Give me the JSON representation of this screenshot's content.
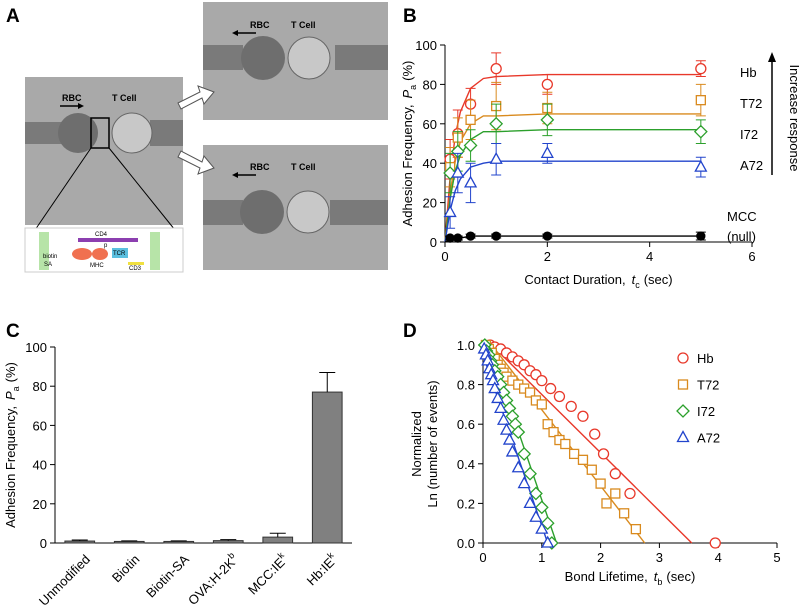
{
  "image_panel": {
    "panel": "A",
    "frames": [
      {
        "cell_labels": [
          "RBC",
          "T Cell"
        ]
      },
      {
        "cell_labels": [
          "RBC",
          "T Cell"
        ]
      },
      {
        "cell_labels": [
          "RBC",
          "T Cell"
        ]
      }
    ],
    "inset_labels": [
      "CD4",
      "biotin",
      "SA",
      "MHC",
      "p",
      "TCR",
      "CD3"
    ]
  },
  "chart_data": [
    {
      "type": "scatter",
      "panel": "B",
      "xlabel": {
        "text": "Contact Duration,",
        "var": "t",
        "sub": "c",
        "unit": "(sec)"
      },
      "ylabel": {
        "text": "Adhesion Frequency,",
        "var": "P",
        "sub": "a",
        "unit": "(%)"
      },
      "xlim": [
        0,
        6
      ],
      "xticks": [
        0,
        2,
        4,
        6
      ],
      "ylim": [
        0,
        100
      ],
      "yticks": [
        0,
        20,
        40,
        60,
        80,
        100
      ],
      "annotations": [
        "Increase response",
        "(null)"
      ],
      "series": [
        {
          "name": "Hb",
          "color": "#e8382a",
          "marker": "circle",
          "x": [
            0.1,
            0.25,
            0.5,
            1,
            2,
            5
          ],
          "values": [
            42,
            55,
            70,
            88,
            80,
            88
          ],
          "errors": [
            10,
            12,
            8,
            8,
            5,
            4
          ],
          "fit": {
            "x": [
              0,
              0.1,
              0.2,
              0.3,
              0.5,
              0.75,
              1,
              2,
              5
            ],
            "values": [
              0,
              33,
              54,
              66,
              78,
              83,
              84,
              85,
              85
            ]
          }
        },
        {
          "name": "T72",
          "color": "#d98a1e",
          "marker": "square",
          "x": [
            0.1,
            0.25,
            0.5,
            1,
            2,
            5
          ],
          "values": [
            38,
            53,
            62,
            69,
            68,
            72
          ],
          "errors": [
            10,
            10,
            10,
            12,
            8,
            8
          ],
          "fit": {
            "x": [
              0,
              0.1,
              0.2,
              0.3,
              0.5,
              0.75,
              1,
              2,
              5
            ],
            "values": [
              0,
              25,
              41,
              51,
              60,
              64,
              64,
              65,
              65
            ]
          }
        },
        {
          "name": "I72",
          "color": "#2ca02c",
          "marker": "diamond",
          "x": [
            0.1,
            0.25,
            0.5,
            1,
            2,
            5
          ],
          "values": [
            35,
            46,
            49,
            60,
            62,
            56
          ],
          "errors": [
            10,
            10,
            8,
            10,
            8,
            6
          ],
          "fit": {
            "x": [
              0,
              0.1,
              0.2,
              0.3,
              0.5,
              0.75,
              1,
              2,
              5
            ],
            "values": [
              0,
              22,
              36,
              44,
              52,
              56,
              56,
              57,
              57
            ]
          }
        },
        {
          "name": "A72",
          "color": "#2244cc",
          "marker": "triangle",
          "x": [
            0.1,
            0.25,
            0.5,
            1,
            2,
            5
          ],
          "values": [
            15,
            35,
            30,
            42,
            45,
            38
          ],
          "errors": [
            8,
            10,
            10,
            8,
            5,
            5
          ],
          "fit": {
            "x": [
              0,
              0.1,
              0.2,
              0.3,
              0.5,
              0.75,
              1,
              2,
              5
            ],
            "values": [
              0,
              16,
              26,
              32,
              38,
              40,
              41,
              41,
              41
            ]
          }
        },
        {
          "name": "MCC",
          "color": "#000000",
          "marker": "dot",
          "x": [
            0.1,
            0.25,
            0.5,
            1,
            2,
            5
          ],
          "values": [
            2,
            2,
            3,
            3,
            3,
            3
          ],
          "errors": [
            1,
            1,
            1,
            1,
            1,
            2
          ],
          "fit": {
            "x": [
              0,
              0.1,
              0.2,
              0.3,
              0.5,
              0.75,
              1,
              2,
              5
            ],
            "values": [
              0,
              1,
              2,
              2,
              3,
              3,
              3,
              3,
              3
            ]
          }
        }
      ]
    },
    {
      "type": "bar",
      "panel": "C",
      "ylabel": {
        "text": "Adhesion Frequency,",
        "var": "P",
        "sub": "a",
        "unit": "(%)"
      },
      "categories": [
        "Unmodified",
        "Biotin",
        "Biotin-SA",
        "OVA:H-2K",
        "MCC:IE",
        "Hb:IE"
      ],
      "category_superscripts": [
        null,
        null,
        null,
        "b",
        "k",
        "k"
      ],
      "values": [
        1,
        0.8,
        0.8,
        1.2,
        3,
        77
      ],
      "errors": [
        0.5,
        0.3,
        0.3,
        0.5,
        2,
        10
      ],
      "color": "#808080",
      "ylim": [
        0,
        100
      ],
      "yticks": [
        0,
        20,
        40,
        60,
        80,
        100
      ]
    },
    {
      "type": "scatter",
      "panel": "D",
      "xlabel": {
        "text": "Bond Lifetime,",
        "var": "t",
        "sub": "b",
        "unit": "(sec)"
      },
      "ylabel_lines": [
        "Normalized",
        "Ln (number of events)"
      ],
      "xlim": [
        0,
        5
      ],
      "xticks": [
        0,
        1,
        2,
        3,
        4,
        5
      ],
      "ylim": [
        0,
        1
      ],
      "yticks": [
        {
          "value": 0,
          "label": "0.0"
        },
        0.2,
        0.4,
        0.6,
        0.8,
        {
          "value": 1,
          "label": "1.0"
        }
      ],
      "series": [
        {
          "name": "Hb",
          "color": "#e8382a",
          "marker": "circle",
          "x": [
            0.05,
            0.12,
            0.2,
            0.3,
            0.4,
            0.5,
            0.6,
            0.7,
            0.8,
            0.9,
            1.0,
            1.15,
            1.3,
            1.5,
            1.7,
            1.9,
            2.05,
            2.25,
            2.5,
            3.95
          ],
          "values": [
            0.99,
            1.0,
            0.99,
            0.98,
            0.96,
            0.94,
            0.92,
            0.9,
            0.87,
            0.85,
            0.82,
            0.78,
            0.74,
            0.69,
            0.64,
            0.55,
            0.45,
            0.35,
            0.25,
            0.0
          ],
          "fit": {
            "x": [
              0.15,
              3.55
            ],
            "values": [
              1,
              0
            ]
          }
        },
        {
          "name": "T72",
          "color": "#d98a1e",
          "marker": "square",
          "x": [
            0.05,
            0.1,
            0.15,
            0.2,
            0.25,
            0.3,
            0.35,
            0.4,
            0.5,
            0.6,
            0.7,
            0.8,
            0.9,
            1.0,
            1.1,
            1.2,
            1.3,
            1.4,
            1.55,
            1.7,
            1.85,
            2.0,
            2.1,
            2.25,
            2.4,
            2.6
          ],
          "values": [
            1.0,
            0.98,
            0.96,
            0.93,
            0.9,
            0.88,
            0.86,
            0.84,
            0.82,
            0.8,
            0.78,
            0.76,
            0.72,
            0.7,
            0.6,
            0.56,
            0.52,
            0.5,
            0.45,
            0.42,
            0.37,
            0.3,
            0.2,
            0.25,
            0.15,
            0.07
          ],
          "fit": {
            "x": [
              0.15,
              2.75
            ],
            "values": [
              1,
              0
            ]
          }
        },
        {
          "name": "I72",
          "color": "#2ca02c",
          "marker": "diamond",
          "x": [
            0.03,
            0.06,
            0.1,
            0.13,
            0.16,
            0.2,
            0.25,
            0.3,
            0.35,
            0.4,
            0.45,
            0.5,
            0.55,
            0.6,
            0.7,
            0.8,
            0.9,
            1.0,
            1.1,
            1.17
          ],
          "values": [
            1.0,
            0.97,
            0.95,
            0.92,
            0.9,
            0.87,
            0.84,
            0.8,
            0.76,
            0.72,
            0.68,
            0.64,
            0.6,
            0.56,
            0.45,
            0.35,
            0.25,
            0.18,
            0.1,
            0.0
          ],
          "fit": {
            "x": [
              0.1,
              1.25
            ],
            "values": [
              1,
              0
            ]
          }
        },
        {
          "name": "A72",
          "color": "#2244cc",
          "marker": "triangle",
          "x": [
            0.02,
            0.05,
            0.08,
            0.11,
            0.14,
            0.17,
            0.2,
            0.25,
            0.3,
            0.35,
            0.4,
            0.45,
            0.5,
            0.6,
            0.7,
            0.8,
            0.9,
            1.0,
            1.1
          ],
          "values": [
            0.98,
            0.95,
            0.92,
            0.88,
            0.85,
            0.82,
            0.78,
            0.73,
            0.68,
            0.62,
            0.57,
            0.52,
            0.46,
            0.38,
            0.3,
            0.2,
            0.13,
            0.07,
            0.0
          ],
          "fit": {
            "x": [
              0,
              1.1
            ],
            "values": [
              0.95,
              0
            ]
          }
        }
      ]
    }
  ]
}
